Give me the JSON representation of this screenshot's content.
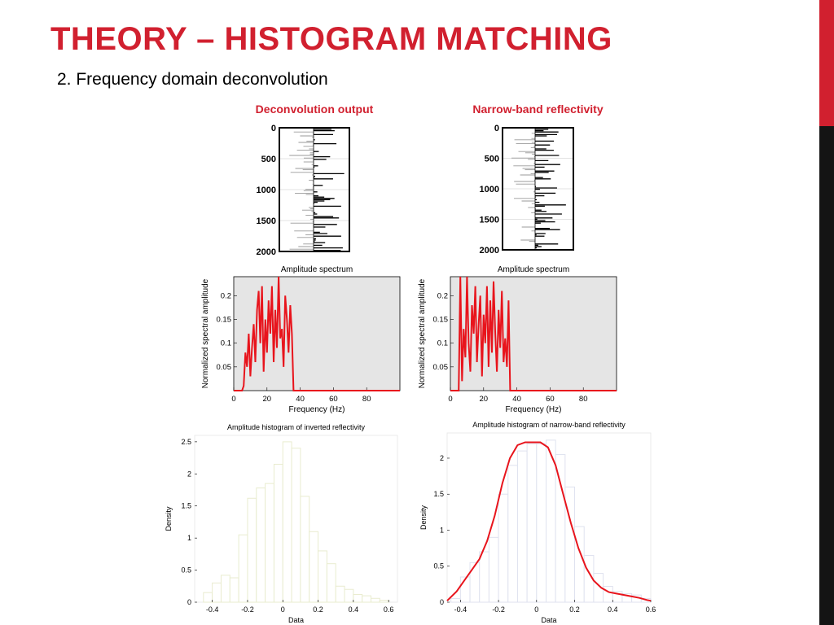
{
  "slide": {
    "title": "THEORY – HISTOGRAM MATCHING",
    "subtitle": "2. Frequency domain deconvolution"
  },
  "colors": {
    "accent": "#d1202f",
    "dark": "#141414",
    "curve": "#e8141c",
    "panel_bg": "#e5e5e5"
  },
  "chart_data": [
    {
      "id": "trace_deconv",
      "type": "line",
      "title": "Deconvolution output",
      "yticks": [
        0,
        500,
        1000,
        1500,
        2000
      ],
      "ylim": [
        0,
        2000
      ],
      "grid": true,
      "style": "wiggle trace, black positive fill, grey negative"
    },
    {
      "id": "trace_narrow",
      "type": "line",
      "title": "Narrow-band reflectivity",
      "yticks": [
        0,
        500,
        1000,
        1500,
        2000
      ],
      "ylim": [
        0,
        2000
      ],
      "grid": true,
      "style": "wiggle trace, black positive fill, grey negative"
    },
    {
      "id": "spec_left",
      "type": "line",
      "title": "Amplitude spectrum",
      "xlabel": "Frequency (Hz)",
      "ylabel": "Normalized spectral amplitude",
      "xticks": [
        0,
        20,
        40,
        60,
        80
      ],
      "yticks": [
        0.05,
        0.1,
        0.15,
        0.2
      ],
      "xlim": [
        0,
        100
      ],
      "ylim": [
        0,
        0.24
      ],
      "band_hz": [
        6,
        37
      ],
      "x": [
        0,
        5,
        6,
        7,
        8,
        9,
        10,
        11,
        12,
        13,
        14,
        15,
        16,
        17,
        18,
        19,
        20,
        21,
        22,
        23,
        24,
        25,
        26,
        27,
        28,
        29,
        30,
        31,
        32,
        33,
        34,
        35,
        36,
        37,
        38,
        50,
        60,
        70,
        80,
        90,
        100
      ],
      "y": [
        0,
        0,
        0.01,
        0.08,
        0.05,
        0.12,
        0.03,
        0.09,
        0.14,
        0.06,
        0.17,
        0.21,
        0.1,
        0.22,
        0.04,
        0.15,
        0.08,
        0.19,
        0.12,
        0.22,
        0.06,
        0.17,
        0.09,
        0.24,
        0.11,
        0.13,
        0.05,
        0.2,
        0.15,
        0.08,
        0.18,
        0.12,
        0.0,
        0.0,
        0,
        0,
        0,
        0,
        0,
        0,
        0
      ]
    },
    {
      "id": "spec_right",
      "type": "line",
      "title": "Amplitude spectrum",
      "xlabel": "Frequency (Hz)",
      "ylabel": "Normalized spectral amplitude",
      "xticks": [
        0,
        20,
        40,
        60,
        80
      ],
      "yticks": [
        0.05,
        0.1,
        0.15,
        0.2
      ],
      "xlim": [
        0,
        100
      ],
      "ylim": [
        0,
        0.24
      ],
      "band_hz": [
        6,
        37
      ],
      "x": [
        0,
        5,
        6,
        7,
        8,
        9,
        10,
        11,
        12,
        13,
        14,
        15,
        16,
        17,
        18,
        19,
        20,
        21,
        22,
        23,
        24,
        25,
        26,
        27,
        28,
        29,
        30,
        31,
        32,
        33,
        34,
        35,
        36,
        37,
        38,
        50,
        60,
        70,
        80,
        90,
        100
      ],
      "y": [
        0,
        0,
        0.24,
        0.02,
        0.13,
        0.07,
        0.24,
        0.1,
        0.04,
        0.18,
        0.12,
        0.22,
        0.06,
        0.14,
        0.2,
        0.03,
        0.16,
        0.1,
        0.22,
        0.05,
        0.19,
        0.08,
        0.23,
        0.12,
        0.04,
        0.17,
        0.09,
        0.21,
        0.06,
        0.11,
        0.05,
        0.19,
        0.0,
        0.0,
        0,
        0,
        0,
        0,
        0,
        0,
        0
      ]
    },
    {
      "id": "hist_left",
      "type": "bar",
      "title": "Amplitude histogram of inverted reflectivity",
      "xlabel": "Data",
      "ylabel": "Density",
      "xticks": [
        -0.4,
        -0.2,
        0,
        0.2,
        0.4,
        0.6
      ],
      "yticks": [
        0,
        0.5,
        1,
        1.5,
        2,
        2.5
      ],
      "xlim": [
        -0.5,
        0.65
      ],
      "ylim": [
        0,
        2.6
      ],
      "bin_edges": [
        -0.45,
        -0.4,
        -0.35,
        -0.3,
        -0.25,
        -0.2,
        -0.15,
        -0.1,
        -0.05,
        0,
        0.05,
        0.1,
        0.15,
        0.2,
        0.25,
        0.3,
        0.35,
        0.4,
        0.45,
        0.5,
        0.55,
        0.6
      ],
      "values": [
        0.15,
        0.3,
        0.42,
        0.38,
        1.05,
        1.62,
        1.78,
        1.85,
        2.15,
        2.5,
        2.4,
        1.65,
        1.1,
        0.8,
        0.6,
        0.25,
        0.2,
        0.12,
        0.1,
        0.06,
        0.03
      ]
    },
    {
      "id": "hist_right",
      "type": "bar",
      "title": "Amplitude histogram of narrow-band reflectivity",
      "xlabel": "Data",
      "ylabel": "Density",
      "xticks": [
        -0.4,
        -0.2,
        0,
        0.2,
        0.4,
        0.6
      ],
      "yticks": [
        0,
        0.5,
        1,
        1.5,
        2
      ],
      "xlim": [
        -0.47,
        0.6
      ],
      "ylim": [
        0,
        2.35
      ],
      "bin_edges": [
        -0.45,
        -0.4,
        -0.35,
        -0.3,
        -0.25,
        -0.2,
        -0.15,
        -0.1,
        -0.05,
        0,
        0.05,
        0.1,
        0.15,
        0.2,
        0.25,
        0.3,
        0.35,
        0.4,
        0.45,
        0.5,
        0.55,
        0.6
      ],
      "values": [
        0.05,
        0.35,
        0.55,
        0.7,
        0.9,
        1.5,
        1.9,
        2.1,
        2.2,
        2.2,
        2.25,
        2.05,
        1.6,
        1.05,
        0.65,
        0.4,
        0.22,
        0.15,
        0.12,
        0.1,
        0.05
      ],
      "density_x": [
        -0.47,
        -0.42,
        -0.38,
        -0.34,
        -0.3,
        -0.26,
        -0.22,
        -0.18,
        -0.14,
        -0.1,
        -0.06,
        -0.02,
        0.02,
        0.06,
        0.1,
        0.14,
        0.18,
        0.22,
        0.26,
        0.3,
        0.34,
        0.38,
        0.42,
        0.46,
        0.5,
        0.54,
        0.58,
        0.6
      ],
      "density_y": [
        0.02,
        0.15,
        0.3,
        0.45,
        0.6,
        0.85,
        1.2,
        1.65,
        2.0,
        2.18,
        2.22,
        2.22,
        2.22,
        2.15,
        1.9,
        1.5,
        1.1,
        0.75,
        0.48,
        0.3,
        0.2,
        0.14,
        0.12,
        0.1,
        0.08,
        0.06,
        0.03,
        0.02
      ]
    }
  ]
}
